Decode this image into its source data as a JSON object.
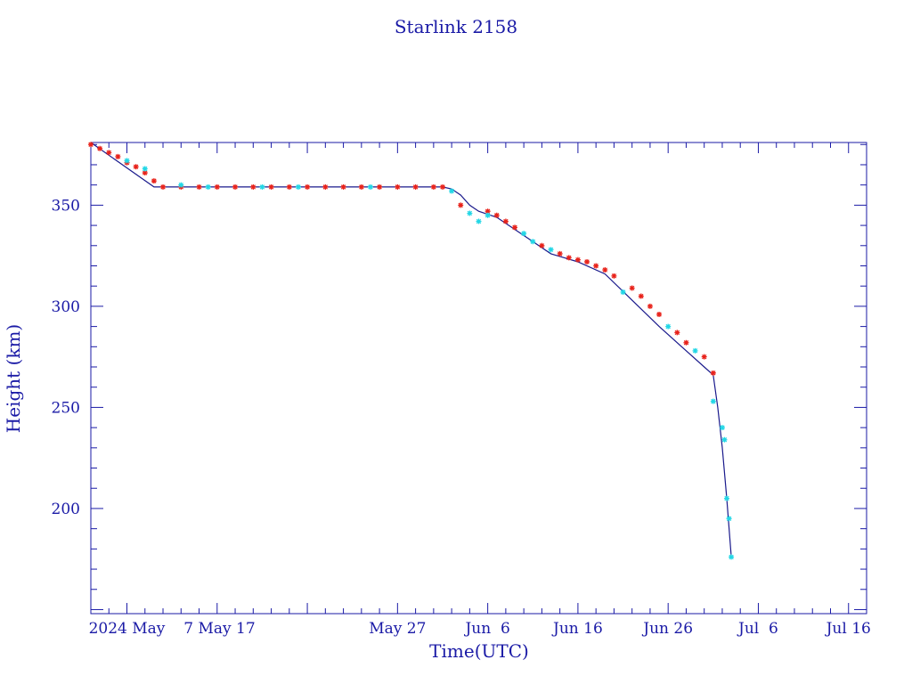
{
  "chart_data": {
    "type": "scatter",
    "title": "Starlink 2158",
    "xlabel": "Time(UTC)",
    "ylabel": "Height (km)",
    "x_axis_type": "date",
    "xlim": [
      "2024-04-23",
      "2024-07-18"
    ],
    "ylim": [
      148,
      381
    ],
    "grid": false,
    "legend": "none",
    "x_ticks": [
      {
        "date": "2024-04-27",
        "label": "2024 May"
      },
      {
        "date": "2024-05-07",
        "label": " 7 May 17"
      },
      {
        "date": "2024-05-27",
        "label": "May 27"
      },
      {
        "date": "2024-06-06",
        "label": "Jun  6"
      },
      {
        "date": "2024-06-16",
        "label": "Jun 16"
      },
      {
        "date": "2024-06-26",
        "label": "Jun 26"
      },
      {
        "date": "2024-07-06",
        "label": "Jul  6"
      },
      {
        "date": "2024-07-16",
        "label": "Jul 16"
      }
    ],
    "y_ticks": [
      {
        "value": 200,
        "label": "200"
      },
      {
        "value": 250,
        "label": "250"
      },
      {
        "value": 300,
        "label": "300"
      },
      {
        "value": 350,
        "label": "350"
      }
    ],
    "colors": {
      "axis": "#1a1aa6",
      "line": "#1a1a8c",
      "series_a": "#e8231b",
      "series_b": "#23d7e6"
    },
    "line": {
      "name": "",
      "x": [
        "2024-04-23",
        "2024-04-30",
        "2024-05-31",
        "2024-06-01",
        "2024-06-02",
        "2024-06-03",
        "2024-06-04",
        "2024-06-05",
        "2024-06-07",
        "2024-06-10",
        "2024-06-13",
        "2024-06-16",
        "2024-06-19",
        "2024-06-22",
        "2024-06-25",
        "2024-06-28",
        "2024-06-30",
        "2024-07-01",
        "2024-07-01 12:00",
        "2024-07-02",
        "2024-07-02 12:00",
        "2024-07-03"
      ],
      "y": [
        381,
        359,
        359,
        359,
        358,
        355,
        350,
        347,
        344,
        335,
        326,
        322,
        316,
        303,
        290,
        278,
        270,
        266,
        250,
        230,
        205,
        176
      ]
    },
    "series": [
      {
        "name": "",
        "color": "#e8231b",
        "marker": "asterisk",
        "x": [
          "2024-04-23",
          "2024-04-24",
          "2024-04-25",
          "2024-04-26",
          "2024-04-27",
          "2024-04-28",
          "2024-04-29",
          "2024-04-30",
          "2024-05-01",
          "2024-05-03",
          "2024-05-05",
          "2024-05-07",
          "2024-05-09",
          "2024-05-11",
          "2024-05-13",
          "2024-05-15",
          "2024-05-17",
          "2024-05-19",
          "2024-05-21",
          "2024-05-23",
          "2024-05-25",
          "2024-05-27",
          "2024-05-29",
          "2024-05-31",
          "2024-06-01",
          "2024-06-03",
          "2024-06-06",
          "2024-06-07",
          "2024-06-08",
          "2024-06-09",
          "2024-06-12",
          "2024-06-14",
          "2024-06-15",
          "2024-06-16",
          "2024-06-17",
          "2024-06-18",
          "2024-06-19",
          "2024-06-20",
          "2024-06-22",
          "2024-06-23",
          "2024-06-24",
          "2024-06-25",
          "2024-06-27",
          "2024-06-28",
          "2024-06-30",
          "2024-07-01"
        ],
        "y": [
          380,
          378,
          376,
          374,
          371,
          369,
          366,
          362,
          359,
          359,
          359,
          359,
          359,
          359,
          359,
          359,
          359,
          359,
          359,
          359,
          359,
          359,
          359,
          359,
          359,
          350,
          347,
          345,
          342,
          339,
          330,
          326,
          324,
          323,
          322,
          320,
          318,
          315,
          309,
          305,
          300,
          296,
          287,
          282,
          275,
          267
        ]
      },
      {
        "name": "",
        "color": "#23d7e6",
        "marker": "asterisk",
        "x": [
          "2024-04-27",
          "2024-04-29",
          "2024-05-03",
          "2024-05-06",
          "2024-05-12",
          "2024-05-16",
          "2024-05-24",
          "2024-06-02",
          "2024-06-04",
          "2024-06-05",
          "2024-06-06",
          "2024-06-10",
          "2024-06-11",
          "2024-06-13",
          "2024-06-21",
          "2024-06-26",
          "2024-06-29",
          "2024-07-01",
          "2024-07-02",
          "2024-07-02 06:00",
          "2024-07-02 12:00",
          "2024-07-02 18:00",
          "2024-07-03"
        ],
        "y": [
          372,
          368,
          360,
          359,
          359,
          359,
          359,
          357,
          346,
          342,
          345,
          336,
          332,
          328,
          307,
          290,
          278,
          253,
          240,
          234,
          205,
          195,
          176
        ]
      }
    ]
  }
}
